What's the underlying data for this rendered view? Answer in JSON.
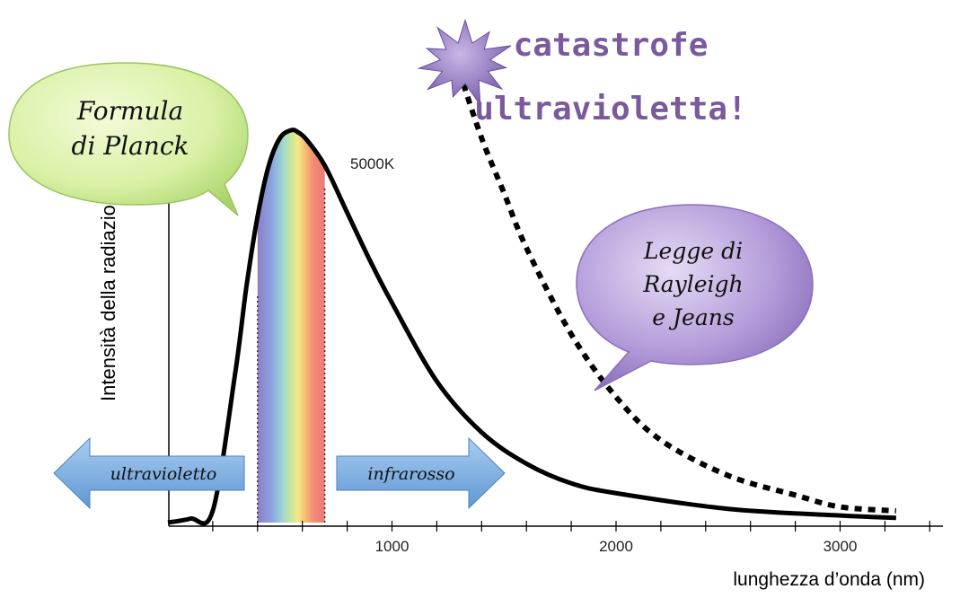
{
  "chart_data": {
    "type": "line",
    "title": "",
    "xlabel": "lunghezza d’onda (nm)",
    "ylabel": "Intensità della radiazione",
    "x_ticks": [
      "1000",
      "2000",
      "3000"
    ],
    "xlim": [
      0,
      3400
    ],
    "temperature_label": "5000K",
    "visible_band_nm": [
      400,
      700
    ],
    "series": [
      {
        "name": "Formula di Planck",
        "style": "solid",
        "x": [
          0,
          100,
          200,
          300,
          350,
          400,
          450,
          500,
          550,
          580,
          620,
          700,
          800,
          900,
          1000,
          1200,
          1400,
          1600,
          1800,
          2000,
          2500,
          3000,
          3250
        ],
        "y": [
          0.0,
          0.01,
          0.03,
          0.38,
          0.6,
          0.78,
          0.91,
          0.98,
          1.0,
          0.995,
          0.975,
          0.91,
          0.79,
          0.67,
          0.56,
          0.36,
          0.23,
          0.15,
          0.1,
          0.075,
          0.035,
          0.018,
          0.012
        ]
      },
      {
        "name": "Legge di Rayleigh e Jeans",
        "style": "dashed",
        "x": [
          1300,
          1400,
          1500,
          1600,
          1800,
          2000,
          2200,
          2500,
          2800,
          3000,
          3250
        ],
        "y": [
          1.15,
          0.98,
          0.84,
          0.7,
          0.48,
          0.32,
          0.21,
          0.12,
          0.07,
          0.04,
          0.03
        ]
      }
    ]
  },
  "callouts": {
    "planck_line1": "Formula",
    "planck_line2": "di Planck",
    "rj_line1": "Legge di",
    "rj_line2": "Rayleigh",
    "rj_line3": "e Jeans",
    "catastrophe_line1": "catastrofe",
    "catastrophe_line2": "ultravioletta!"
  },
  "arrows": {
    "uv": "ultravioletto",
    "ir": "infrarosso"
  },
  "colors": {
    "curve": "#000000",
    "planck_bubble": "#d9f2a4",
    "rj_bubble": "#a78bd2",
    "catastrophe_text": "#7a5a9e",
    "arrow_fill": "#7fb2e4"
  }
}
